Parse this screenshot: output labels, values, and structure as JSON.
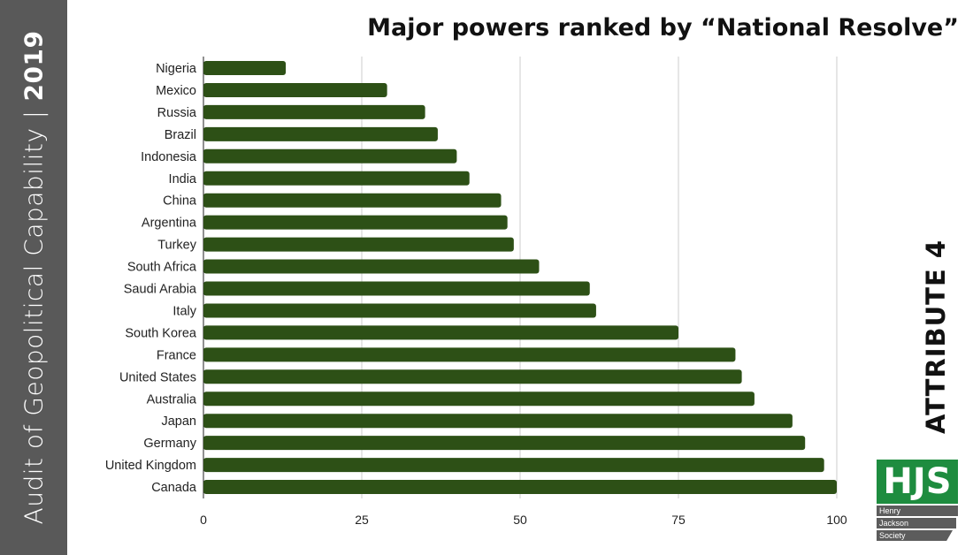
{
  "sidebar": {
    "title": "Audit of Geopolitical Capability",
    "separator": "|",
    "year": "2019"
  },
  "attribute_label": "ATTRIBUTE 4",
  "logo": {
    "initials": "HJS",
    "lines": [
      "Henry",
      "Jackson",
      "Society"
    ]
  },
  "colors": {
    "bar": "#2d5016",
    "sidebar": "#595959",
    "logo_green": "#1e8c3f",
    "grid": "#cccccc"
  },
  "chart_data": {
    "type": "bar",
    "orientation": "horizontal",
    "title": "Major powers ranked by “National Resolve”",
    "xlabel": "",
    "ylabel": "",
    "xlim": [
      0,
      100
    ],
    "xticks": [
      "0",
      "25",
      "50",
      "75",
      "100"
    ],
    "grid": "vertical",
    "categories": [
      "Nigeria",
      "Mexico",
      "Russia",
      "Brazil",
      "Indonesia",
      "India",
      "China",
      "Argentina",
      "Turkey",
      "South Africa",
      "Saudi Arabia",
      "Italy",
      "South Korea",
      "France",
      "United States",
      "Australia",
      "Japan",
      "Germany",
      "United Kingdom",
      "Canada"
    ],
    "values": [
      13,
      29,
      35,
      37,
      40,
      42,
      47,
      48,
      49,
      53,
      61,
      62,
      75,
      84,
      85,
      87,
      93,
      95,
      98,
      100
    ]
  }
}
